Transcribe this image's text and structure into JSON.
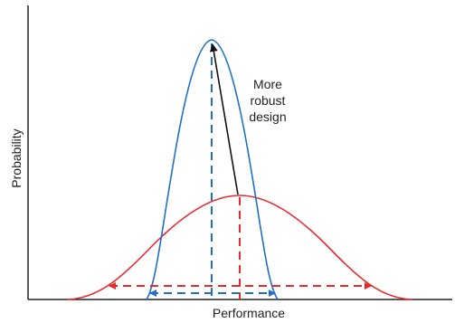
{
  "axes": {
    "xlabel": "Performance",
    "ylabel": "Probability"
  },
  "annotation": {
    "lines": [
      "More",
      "robust",
      "design"
    ]
  },
  "colors": {
    "robust_curve": "#1f6fc6",
    "baseline_curve": "#e8282b",
    "arrow": "#111111",
    "axis": "#222222"
  }
}
